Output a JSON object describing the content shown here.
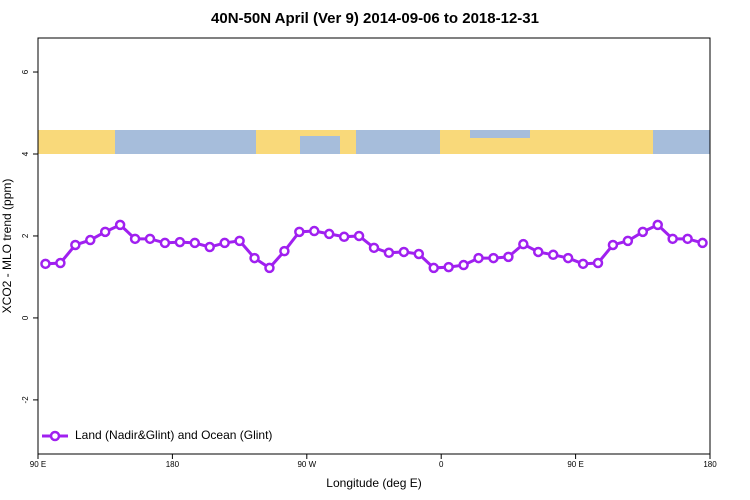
{
  "chart_data": {
    "type": "line",
    "title": "40N-50N April (Ver 9)   2014-09-06 to 2018-12-31",
    "x_label": "Longitude (deg E)",
    "y_label": "XCO2 - MLO trend (ppm)",
    "legend_position": "bottom-left",
    "x": [
      95,
      105,
      115,
      125,
      135,
      145,
      155,
      165,
      175,
      185,
      195,
      205,
      215,
      225,
      235,
      245,
      255,
      265,
      275,
      285,
      295,
      305,
      315,
      325,
      335,
      345,
      355,
      365,
      375,
      385,
      395,
      405,
      415,
      425,
      435,
      445,
      455,
      465,
      475,
      485,
      495,
      505,
      515,
      525,
      535
    ],
    "series": [
      {
        "name": "Land (Nadir&Glint) and Ocean (Glint)",
        "color": "#a020f0",
        "values": [
          1.32,
          1.34,
          1.78,
          1.9,
          2.1,
          2.27,
          1.93,
          1.93,
          1.83,
          1.85,
          1.83,
          1.73,
          1.83,
          1.88,
          1.46,
          1.22,
          1.63,
          2.1,
          2.12,
          2.05,
          1.98,
          2.0,
          1.71,
          1.59,
          1.61,
          1.56,
          1.22,
          1.24,
          1.29,
          1.46,
          1.46,
          1.49,
          1.8,
          1.61,
          1.54,
          1.46,
          1.32,
          1.34,
          1.78,
          1.88,
          2.1,
          2.27,
          1.93,
          1.93,
          1.83
        ]
      }
    ],
    "xlim": [
      90,
      540
    ],
    "xticks": [
      {
        "value": 90,
        "label": "90 E"
      },
      180,
      {
        "value": 270,
        "label": "90 W"
      },
      {
        "value": 360,
        "label": "0"
      },
      {
        "value": 450,
        "label": "90 E"
      },
      {
        "value": 540,
        "label": "180"
      }
    ],
    "ylim": [
      -3.32,
      6.83
    ],
    "yticks": [
      -2,
      0,
      2,
      4,
      6
    ]
  }
}
